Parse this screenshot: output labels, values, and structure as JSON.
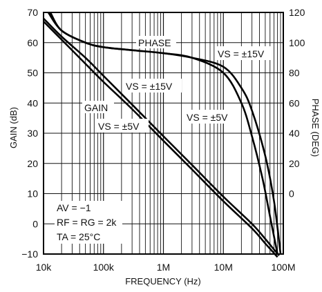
{
  "chart_data": {
    "type": "line",
    "xlabel": "FREQUENCY (Hz)",
    "ylabel_left": "GAIN (dB)",
    "ylabel_right": "PHASE (DEG)",
    "x_scale": "log",
    "xlim": [
      10000,
      100000000
    ],
    "x_tick_labels": [
      "10k",
      "100k",
      "1M",
      "10M",
      "100M"
    ],
    "x_tick_values": [
      10000,
      100000,
      1000000,
      10000000,
      100000000
    ],
    "ylim_left": [
      -10,
      70
    ],
    "y_left_ticks": [
      -10,
      0,
      10,
      20,
      30,
      40,
      50,
      60,
      70
    ],
    "ylim_right": [
      -40,
      120
    ],
    "y_right_ticks": [
      0,
      20,
      40,
      60,
      80,
      100,
      120
    ],
    "grid": true,
    "series": [
      {
        "name": "GAIN, VS = ±15V",
        "axis": "left",
        "x": [
          10000,
          20000,
          50000,
          100000,
          300000,
          1000000,
          3000000,
          10000000,
          30000000,
          50000000,
          70000000,
          85000000
        ],
        "y": [
          68,
          62,
          55,
          49,
          39.5,
          29,
          19.5,
          9,
          0,
          -5,
          -8.5,
          -10.5
        ]
      },
      {
        "name": "GAIN, VS = ±5V",
        "axis": "left",
        "x": [
          10000,
          20000,
          50000,
          100000,
          300000,
          1000000,
          3000000,
          10000000,
          30000000,
          50000000,
          65000000,
          80000000
        ],
        "y": [
          67,
          61,
          53,
          47,
          38,
          27.5,
          18,
          7.5,
          -1.5,
          -6.5,
          -9,
          -11
        ]
      },
      {
        "name": "PHASE, VS = ±15V",
        "axis": "right",
        "x": [
          12000,
          20000,
          50000,
          100000,
          300000,
          1000000,
          3000000,
          10000000,
          20000000,
          30000000,
          50000000,
          70000000,
          90000000
        ],
        "y": [
          120,
          108,
          100,
          97,
          95,
          93,
          90,
          84,
          70,
          55,
          25,
          -5,
          -40
        ]
      },
      {
        "name": "PHASE, VS = ±5V",
        "axis": "right",
        "x": [
          13000,
          20000,
          50000,
          100000,
          300000,
          1000000,
          3000000,
          10000000,
          20000000,
          30000000,
          45000000,
          60000000,
          80000000
        ],
        "y": [
          120,
          108,
          100,
          97,
          95,
          93,
          90,
          80,
          60,
          38,
          10,
          -15,
          -40
        ]
      }
    ],
    "annotations": {
      "phase": "PHASE",
      "gain": "GAIN",
      "vs_phase_15": "VS = ±15V",
      "vs_phase_5": "VS = ±5V",
      "vs_gain_15": "VS = ±15V",
      "vs_gain_5": "VS = ±5V",
      "av": "AV = −1",
      "rf": "RF = RG = 2k",
      "ta": "TA = 25°C"
    }
  }
}
